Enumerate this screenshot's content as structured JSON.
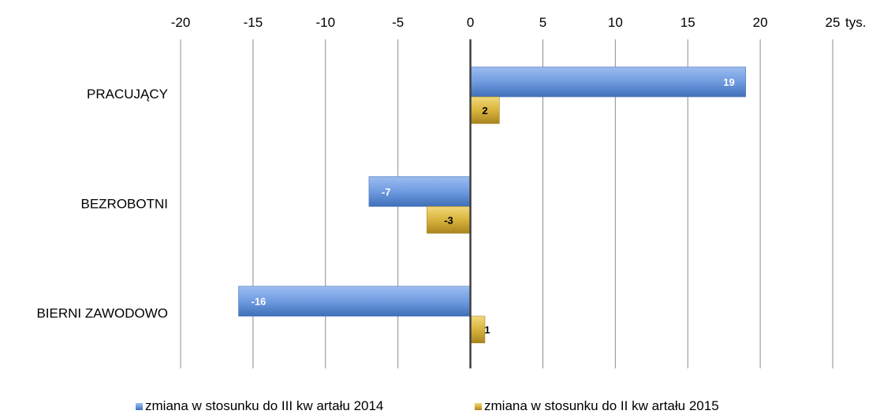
{
  "chart_data": {
    "type": "bar",
    "orientation": "horizontal",
    "unit_label": "tys.",
    "categories": [
      "PRACUJĄCY",
      "BEZROBOTNI",
      "BIERNI ZAWODOWO"
    ],
    "series": [
      {
        "name": "zmiana w stosunku do III kw artału 2014",
        "values": [
          19,
          -7,
          -16
        ],
        "color": "#5B8DD6"
      },
      {
        "name": "zmiana w stosunku do II kw artału 2015",
        "values": [
          2,
          -3,
          1
        ],
        "color": "#D9B43C"
      }
    ],
    "xlim": [
      -20,
      25
    ],
    "xticks": [
      "-20",
      "-15",
      "-10",
      "-5",
      "0",
      "5",
      "10",
      "15",
      "20",
      "25"
    ],
    "grid": true,
    "axis_position": "top",
    "legend_position": "bottom"
  }
}
